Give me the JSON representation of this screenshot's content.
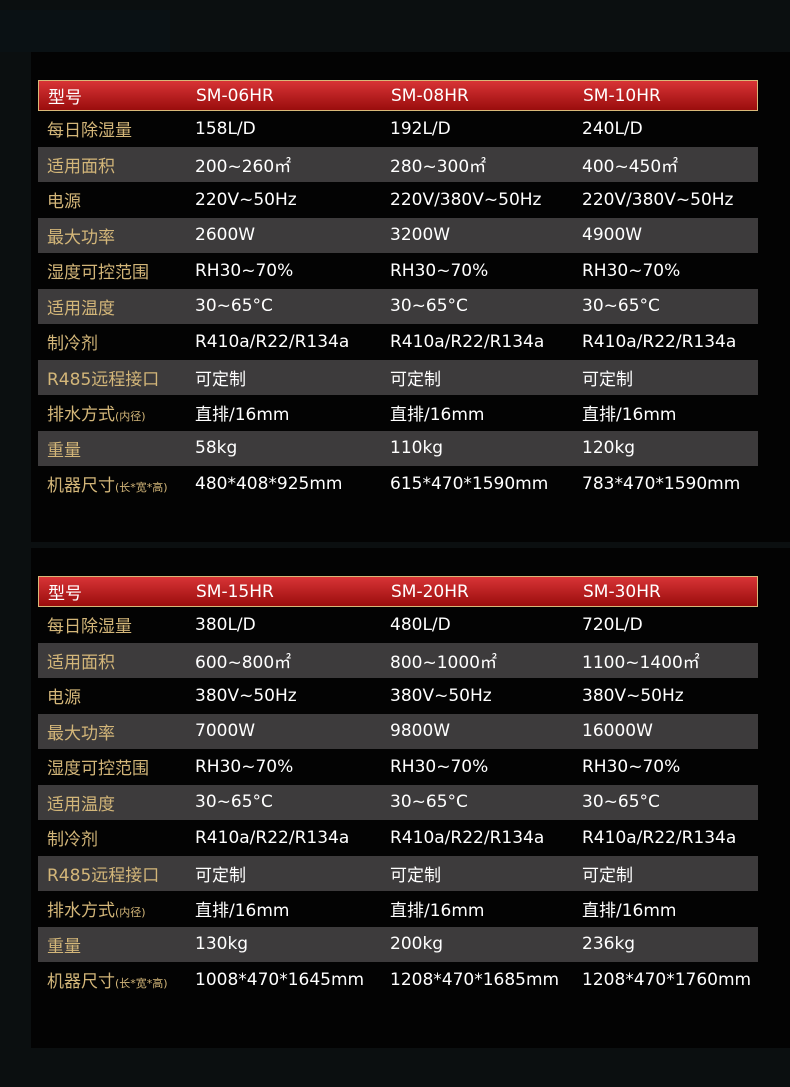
{
  "labels": [
    "每日除湿量",
    "适用面积",
    "电源",
    "最大功率",
    "湿度可控范围",
    "适用温度",
    "制冷剂",
    "R485远程接口",
    "排水方式",
    "重量",
    "机器尺寸"
  ],
  "label_suffix": {
    "排水方式": "(内径)",
    "机器尺寸": "(长*宽*高)"
  },
  "header_label": "型号",
  "tables": [
    {
      "models": [
        "SM-06HR",
        "SM-08HR",
        "SM-10HR"
      ],
      "rows": [
        [
          "158L/D",
          "192L/D",
          "240L/D"
        ],
        [
          "200~260㎡",
          "280~300㎡",
          "400~450㎡"
        ],
        [
          "220V~50Hz",
          "220V/380V~50Hz",
          "220V/380V~50Hz"
        ],
        [
          "2600W",
          "3200W",
          "4900W"
        ],
        [
          "RH30~70%",
          "RH30~70%",
          "RH30~70%"
        ],
        [
          "30~65°C",
          "30~65°C",
          "30~65°C"
        ],
        [
          "R410a/R22/R134a",
          "R410a/R22/R134a",
          "R410a/R22/R134a"
        ],
        [
          "可定制",
          "可定制",
          "可定制"
        ],
        [
          "直排/16mm",
          "直排/16mm",
          "直排/16mm"
        ],
        [
          "58kg",
          "110kg",
          "120kg"
        ],
        [
          "480*408*925mm",
          "615*470*1590mm",
          "783*470*1590mm"
        ]
      ]
    },
    {
      "models": [
        "SM-15HR",
        "SM-20HR",
        "SM-30HR"
      ],
      "rows": [
        [
          "380L/D",
          "480L/D",
          "720L/D"
        ],
        [
          "600~800㎡",
          "800~1000㎡",
          "1100~1400㎡"
        ],
        [
          "380V~50Hz",
          "380V~50Hz",
          "380V~50Hz"
        ],
        [
          "7000W",
          "9800W",
          "16000W"
        ],
        [
          "RH30~70%",
          "RH30~70%",
          "RH30~70%"
        ],
        [
          "30~65°C",
          "30~65°C",
          "30~65°C"
        ],
        [
          "R410a/R22/R134a",
          "R410a/R22/R134a",
          "R410a/R22/R134a"
        ],
        [
          "可定制",
          "可定制",
          "可定制"
        ],
        [
          "直排/16mm",
          "直排/16mm",
          "直排/16mm"
        ],
        [
          "130kg",
          "200kg",
          "236kg"
        ],
        [
          "1008*470*1645mm",
          "1208*470*1685mm",
          "1208*470*1760mm"
        ]
      ]
    }
  ]
}
